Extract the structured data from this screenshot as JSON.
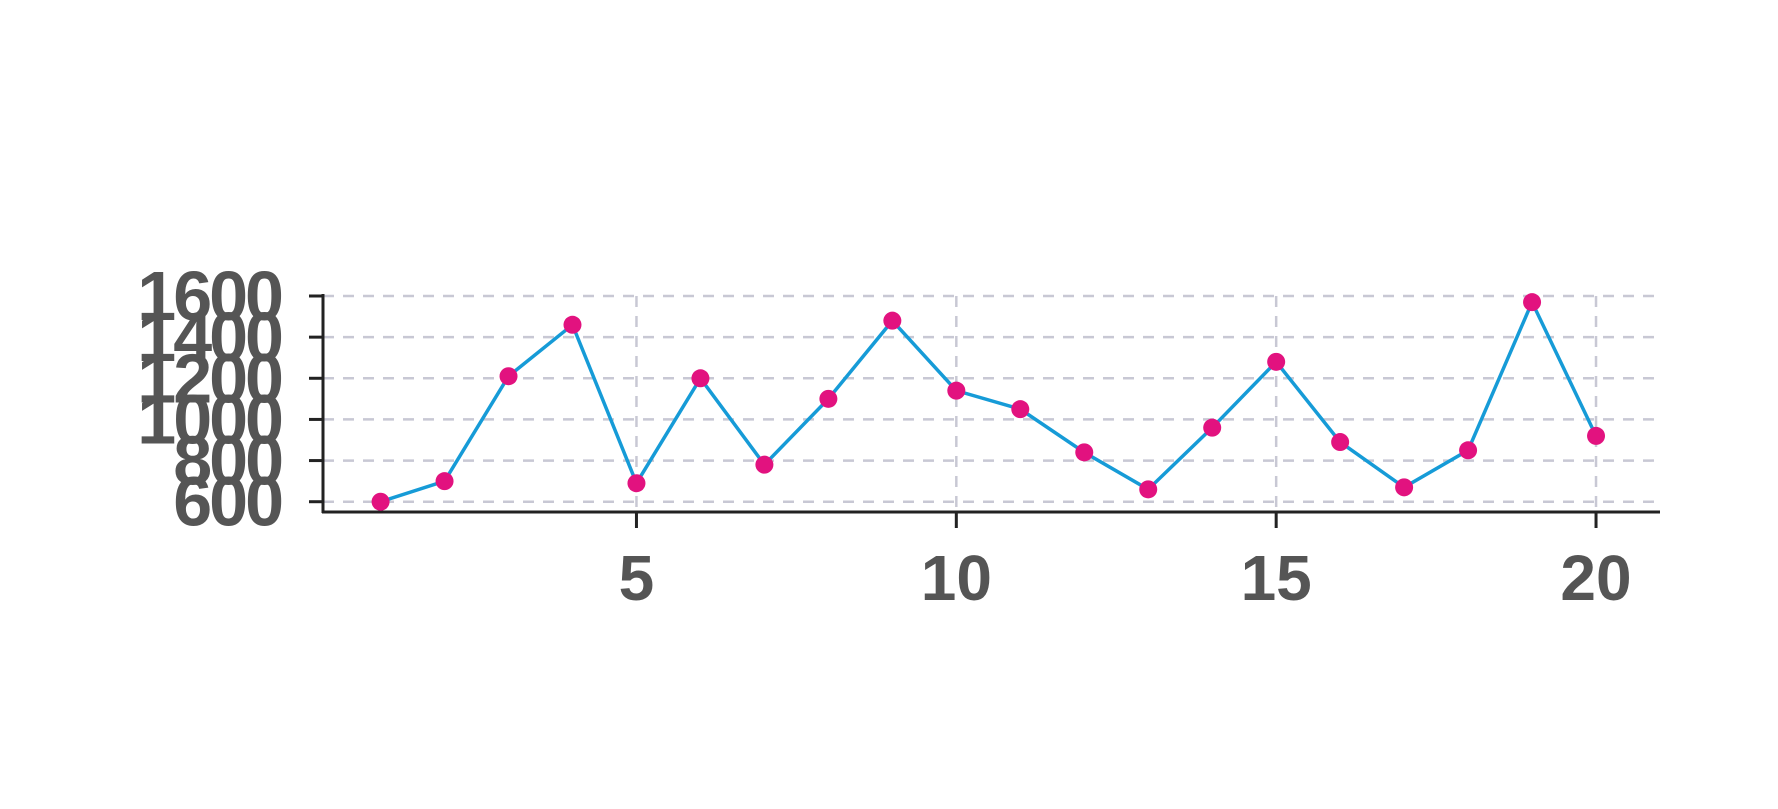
{
  "chart_data": {
    "type": "line",
    "x": [
      1,
      2,
      3,
      4,
      5,
      6,
      7,
      8,
      9,
      10,
      11,
      12,
      13,
      14,
      15,
      16,
      17,
      18,
      19,
      20
    ],
    "series": [
      {
        "values": [
          600,
          700,
          1210,
          1460,
          690,
          1200,
          780,
          1100,
          1480,
          1140,
          1050,
          840,
          660,
          960,
          1280,
          890,
          670,
          850,
          1570,
          920
        ]
      }
    ],
    "x_ticks": [
      5,
      10,
      15,
      20
    ],
    "y_ticks": [
      600,
      800,
      1000,
      1200,
      1400,
      1600
    ],
    "xlim": [
      0.1,
      21
    ],
    "ylim": [
      550,
      1600
    ],
    "grid": true,
    "title": "",
    "xlabel": "",
    "ylabel": "",
    "colors": {
      "line": "#169bd7",
      "marker": "#e2127f",
      "grid": "#c8c8d4",
      "axis": "#222222",
      "tick_text": "#555555"
    }
  }
}
